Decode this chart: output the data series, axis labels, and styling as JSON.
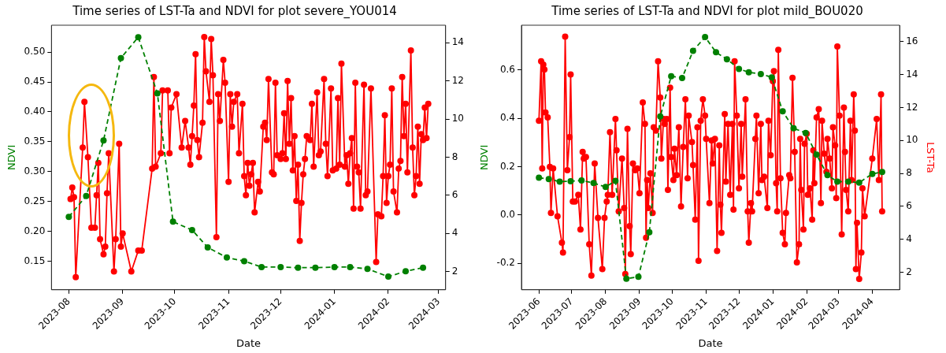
{
  "chart_data": [
    {
      "type": "line",
      "title": "Time series of LST-Ta and NDVI for plot severe_YOU014",
      "xlabel": "Date",
      "ylabel": "NDVI",
      "xlim": [
        "2023-07-22",
        "2024-03-05"
      ],
      "xticks": [
        "2023-08",
        "2023-09",
        "2023-10",
        "2023-11",
        "2023-12",
        "2024-01",
        "2024-02",
        "2024-03"
      ],
      "ylim": [
        0.102,
        0.545
      ],
      "yticks": [
        {
          "value": 0.15,
          "label": "0.15"
        },
        {
          "value": 0.2,
          "label": "0.20"
        },
        {
          "value": 0.25,
          "label": "0.25"
        },
        {
          "value": 0.3,
          "label": "0.30"
        },
        {
          "value": 0.35,
          "label": "0.35"
        },
        {
          "value": 0.4,
          "label": "0.40"
        },
        {
          "value": 0.45,
          "label": "0.45"
        },
        {
          "value": 0.5,
          "label": "0.50"
        }
      ],
      "y2lim": [
        1.04,
        14.92
      ],
      "y2ticks": [
        2,
        4,
        6,
        8,
        10,
        12,
        14
      ],
      "grid": false,
      "series": [
        {
          "type": "line",
          "color": "#008000",
          "marker": "circle",
          "line_style": "dashed",
          "axis": "y",
          "x": [
            "2023-08-01",
            "2023-08-11",
            "2023-08-21",
            "2023-08-31",
            "2023-09-10",
            "2023-09-21",
            "2023-09-30",
            "2023-10-11",
            "2023-10-20",
            "2023-10-31",
            "2023-11-10",
            "2023-11-20",
            "2023-12-01",
            "2023-12-11",
            "2023-12-21",
            "2024-01-01",
            "2024-01-10",
            "2024-01-20",
            "2024-02-01",
            "2024-02-11",
            "2024-02-21"
          ],
          "values": [
            0.224,
            0.259,
            0.352,
            0.49,
            0.525,
            0.431,
            0.216,
            0.202,
            0.173,
            0.156,
            0.15,
            0.14,
            0.14,
            0.139,
            0.139,
            0.14,
            0.14,
            0.137,
            0.124,
            0.133,
            0.139
          ]
        },
        {
          "type": "line",
          "color": "#ff0000",
          "marker": "circle",
          "line_style": "solid",
          "axis": "y2",
          "x": [
            "2023-08-02",
            "2023-08-03",
            "2023-08-04",
            "2023-08-05",
            "2023-08-09",
            "2023-08-10",
            "2023-08-12",
            "2023-08-14",
            "2023-08-16",
            "2023-08-17",
            "2023-08-18",
            "2023-08-19",
            "2023-08-21",
            "2023-08-22",
            "2023-08-23",
            "2023-08-24",
            "2023-08-27",
            "2023-08-28",
            "2023-08-30",
            "2023-08-31",
            "2023-09-01",
            "2023-09-06",
            "2023-09-10",
            "2023-09-12",
            "2023-09-18",
            "2023-09-19",
            "2023-09-20",
            "2023-09-23",
            "2023-09-24",
            "2023-09-27",
            "2023-09-28",
            "2023-09-29",
            "2023-10-02",
            "2023-10-05",
            "2023-10-07",
            "2023-10-09",
            "2023-10-10",
            "2023-10-11",
            "2023-10-12",
            "2023-10-13",
            "2023-10-14",
            "2023-10-15",
            "2023-10-17",
            "2023-10-18",
            "2023-10-19",
            "2023-10-21",
            "2023-10-22",
            "2023-10-23",
            "2023-10-25",
            "2023-10-26",
            "2023-10-27",
            "2023-10-29",
            "2023-10-30",
            "2023-11-01",
            "2023-11-02",
            "2023-11-03",
            "2023-11-04",
            "2023-11-06",
            "2023-11-07",
            "2023-11-09",
            "2023-11-10",
            "2023-11-11",
            "2023-11-12",
            "2023-11-13",
            "2023-11-14",
            "2023-11-15",
            "2023-11-16",
            "2023-11-18",
            "2023-11-19",
            "2023-11-21",
            "2023-11-22",
            "2023-11-23",
            "2023-11-24",
            "2023-11-26",
            "2023-11-27",
            "2023-11-28",
            "2023-11-29",
            "2023-12-01",
            "2023-12-02",
            "2023-12-03",
            "2023-12-04",
            "2023-12-05",
            "2023-12-06",
            "2023-12-07",
            "2023-12-08",
            "2023-12-09",
            "2023-12-10",
            "2023-12-11",
            "2023-12-12",
            "2023-12-13",
            "2023-12-14",
            "2023-12-15",
            "2023-12-16",
            "2023-12-18",
            "2023-12-19",
            "2023-12-20",
            "2023-12-22",
            "2023-12-23",
            "2023-12-24",
            "2023-12-26",
            "2023-12-27",
            "2023-12-28",
            "2023-12-30",
            "2023-12-31",
            "2024-01-02",
            "2024-01-03",
            "2024-01-04",
            "2024-01-05",
            "2024-01-07",
            "2024-01-08",
            "2024-01-09",
            "2024-01-10",
            "2024-01-11",
            "2024-01-12",
            "2024-01-13",
            "2024-01-14",
            "2024-01-15",
            "2024-01-16",
            "2024-01-18",
            "2024-01-19",
            "2024-01-20",
            "2024-01-22",
            "2024-01-25",
            "2024-01-26",
            "2024-01-28",
            "2024-01-29",
            "2024-01-30",
            "2024-01-31",
            "2024-02-01",
            "2024-02-02",
            "2024-02-03",
            "2024-02-04",
            "2024-02-06",
            "2024-02-07",
            "2024-02-08",
            "2024-02-09",
            "2024-02-10",
            "2024-02-11",
            "2024-02-12",
            "2024-02-14",
            "2024-02-15",
            "2024-02-16",
            "2024-02-17",
            "2024-02-18",
            "2024-02-19",
            "2024-02-20",
            "2024-02-21",
            "2024-02-22",
            "2024-02-23",
            "2024-02-24"
          ],
          "values": [
            5.8,
            6.4,
            5.9,
            1.7,
            8.5,
            10.9,
            8.0,
            4.3,
            4.3,
            6.0,
            7.7,
            3.7,
            2.9,
            3.3,
            6.1,
            8.2,
            2.0,
            3.7,
            8.7,
            3.3,
            4.0,
            2.0,
            3.1,
            3.1,
            7.4,
            12.2,
            7.5,
            8.2,
            11.5,
            11.5,
            8.2,
            10.6,
            11.3,
            8.5,
            9.9,
            8.5,
            7.6,
            9.1,
            10.7,
            13.4,
            8.9,
            8.0,
            9.8,
            14.3,
            12.5,
            10.9,
            14.2,
            12.3,
            3.8,
            11.3,
            9.9,
            13.1,
            11.9,
            6.7,
            11.3,
            9.6,
            10.9,
            11.3,
            8.2,
            10.8,
            7.0,
            6.0,
            7.7,
            6.5,
            7.1,
            7.7,
            5.1,
            6.7,
            6.2,
            9.6,
            9.8,
            8.9,
            12.1,
            7.2,
            7.1,
            11.9,
            8.1,
            7.9,
            8.2,
            10.3,
            7.9,
            12.0,
            8.7,
            11.1,
            7.3,
            9.1,
            5.7,
            7.6,
            3.6,
            5.6,
            7.1,
            7.9,
            9.1,
            8.9,
            10.8,
            7.5,
            11.4,
            8.1,
            8.3,
            12.1,
            8.7,
            7.0,
            11.6,
            7.3,
            7.4,
            11.1,
            7.6,
            12.9,
            7.5,
            8.1,
            6.6,
            8.2,
            9.0,
            5.3,
            11.9,
            7.5,
            7.2,
            5.3,
            11.8,
            6.0,
            6.2,
            11.6,
            2.5,
            5.0,
            4.9,
            7.0,
            10.2,
            5.6,
            7.0,
            7.6,
            11.6,
            6.2,
            5.1,
            7.4,
            7.8,
            12.2,
            9.1,
            10.8,
            7.2,
            13.6,
            8.5,
            6.0,
            7.0,
            9.6,
            6.6,
            9.2,
            8.9,
            10.6,
            9.0,
            10.8
          ]
        }
      ]
    },
    {
      "type": "line",
      "title": "Time series of LST-Ta and NDVI for plot mild_BOU020",
      "xlabel": "Date",
      "ylabel": "NDVI",
      "y2label": "LST-Ta",
      "xlim": [
        "2023-05-16",
        "2024-04-26"
      ],
      "xticks": [
        "2023-06",
        "2023-07",
        "2023-08",
        "2023-09",
        "2023-10",
        "2023-11",
        "2023-12",
        "2024-01",
        "2024-02",
        "2024-03",
        "2024-04"
      ],
      "ylim": [
        -0.31,
        0.786
      ],
      "yticks": [
        -0.2,
        {
          "value": 0,
          "label": "0.0"
        },
        0.2,
        0.4,
        0.6
      ],
      "y2lim": [
        0.94,
        16.99
      ],
      "y2ticks": [
        2,
        4,
        6,
        8,
        10,
        12,
        14,
        16
      ],
      "grid": false,
      "series": [
        {
          "type": "line",
          "color": "#008000",
          "marker": "circle",
          "line_style": "dashed",
          "axis": "y",
          "x": [
            "2023-06-01",
            "2023-06-10",
            "2023-06-20",
            "2023-06-30",
            "2023-07-10",
            "2023-07-21",
            "2023-08-01",
            "2023-08-10",
            "2023-08-20",
            "2023-08-31",
            "2023-09-10",
            "2023-09-20",
            "2023-09-30",
            "2023-10-10",
            "2023-10-20",
            "2023-10-31",
            "2023-11-10",
            "2023-11-20",
            "2023-12-01",
            "2023-12-10",
            "2023-12-21",
            "2023-12-31",
            "2024-01-10",
            "2024-01-20",
            "2024-01-31",
            "2024-02-10",
            "2024-02-20",
            "2024-02-29",
            "2024-03-10",
            "2024-03-20",
            "2024-04-01",
            "2024-04-10"
          ],
          "values": [
            0.154,
            0.149,
            0.138,
            0.14,
            0.143,
            0.132,
            0.116,
            0.141,
            -0.264,
            -0.256,
            -0.072,
            0.408,
            0.575,
            0.567,
            0.68,
            0.737,
            0.674,
            0.645,
            0.605,
            0.591,
            0.584,
            0.57,
            0.429,
            0.359,
            0.34,
            0.25,
            0.165,
            0.138,
            0.138,
            0.134,
            0.17,
            0.178
          ]
        },
        {
          "type": "line",
          "color": "#ff0000",
          "marker": "circle",
          "line_style": "solid",
          "axis": "y2",
          "x": [
            "2023-06-01",
            "2023-06-03",
            "2023-06-04",
            "2023-06-05",
            "2023-06-06",
            "2023-06-07",
            "2023-06-09",
            "2023-06-11",
            "2023-06-12",
            "2023-06-14",
            "2023-06-18",
            "2023-06-22",
            "2023-06-23",
            "2023-06-25",
            "2023-06-27",
            "2023-06-29",
            "2023-06-30",
            "2023-07-02",
            "2023-07-04",
            "2023-07-07",
            "2023-07-09",
            "2023-07-11",
            "2023-07-12",
            "2023-07-14",
            "2023-07-17",
            "2023-07-19",
            "2023-07-22",
            "2023-07-25",
            "2023-07-29",
            "2023-07-31",
            "2023-08-02",
            "2023-08-03",
            "2023-08-05",
            "2023-08-07",
            "2023-08-10",
            "2023-08-11",
            "2023-08-13",
            "2023-08-16",
            "2023-08-18",
            "2023-08-19",
            "2023-08-21",
            "2023-08-23",
            "2023-08-24",
            "2023-08-26",
            "2023-08-28",
            "2023-08-30",
            "2023-09-01",
            "2023-09-04",
            "2023-09-06",
            "2023-09-07",
            "2023-09-08",
            "2023-09-09",
            "2023-09-11",
            "2023-09-13",
            "2023-09-14",
            "2023-09-16",
            "2023-09-18",
            "2023-09-20",
            "2023-09-21",
            "2023-09-23",
            "2023-09-24",
            "2023-09-26",
            "2023-09-27",
            "2023-09-29",
            "2023-09-30",
            "2023-10-02",
            "2023-10-03",
            "2023-10-05",
            "2023-10-07",
            "2023-10-09",
            "2023-10-11",
            "2023-10-13",
            "2023-10-15",
            "2023-10-16",
            "2023-10-19",
            "2023-10-20",
            "2023-10-22",
            "2023-10-24",
            "2023-10-25",
            "2023-10-27",
            "2023-10-29",
            "2023-10-31",
            "2023-11-01",
            "2023-11-04",
            "2023-11-06",
            "2023-11-07",
            "2023-11-09",
            "2023-11-11",
            "2023-11-13",
            "2023-11-14",
            "2023-11-15",
            "2023-11-18",
            "2023-11-19",
            "2023-11-21",
            "2023-11-23",
            "2023-11-25",
            "2023-11-26",
            "2023-11-27",
            "2023-11-29",
            "2023-12-01",
            "2023-12-03",
            "2023-12-04",
            "2023-12-07",
            "2023-12-09",
            "2023-12-10",
            "2023-12-12",
            "2023-12-13",
            "2023-12-16",
            "2023-12-17",
            "2023-12-19",
            "2023-12-21",
            "2023-12-22",
            "2023-12-24",
            "2023-12-27",
            "2023-12-28",
            "2023-12-30",
            "2024-01-01",
            "2024-01-02",
            "2024-01-04",
            "2024-01-05",
            "2024-01-06",
            "2024-01-08",
            "2024-01-10",
            "2024-01-12",
            "2024-01-13",
            "2024-01-16",
            "2024-01-17",
            "2024-01-19",
            "2024-01-21",
            "2024-01-23",
            "2024-01-25",
            "2024-01-26",
            "2024-01-27",
            "2024-01-29",
            "2024-01-30",
            "2024-02-01",
            "2024-02-02",
            "2024-02-04",
            "2024-02-06",
            "2024-02-07",
            "2024-02-08",
            "2024-02-10",
            "2024-02-12",
            "2024-02-14",
            "2024-02-15",
            "2024-02-17",
            "2024-02-19",
            "2024-02-20",
            "2024-02-22",
            "2024-02-24",
            "2024-02-25",
            "2024-02-27",
            "2024-02-28",
            "2024-02-29",
            "2024-03-02",
            "2024-03-04",
            "2024-03-06",
            "2024-03-07",
            "2024-03-08",
            "2024-03-10",
            "2024-03-12",
            "2024-03-13",
            "2024-03-15",
            "2024-03-16",
            "2024-03-17",
            "2024-03-18",
            "2024-03-20",
            "2024-03-22",
            "2024-03-23",
            "2024-03-25",
            "2024-04-01",
            "2024-04-05",
            "2024-04-07",
            "2024-04-09",
            "2024-04-10"
          ],
          "values": [
            11.2,
            14.8,
            8.3,
            14.6,
            14.3,
            11.7,
            11.4,
            8.4,
            5.6,
            8.3,
            5.4,
            3.8,
            3.2,
            16.3,
            8.2,
            10.2,
            14.0,
            6.3,
            6.3,
            6.7,
            4.6,
            9.3,
            8.9,
            9.0,
            3.7,
            1.8,
            8.6,
            5.3,
            2.2,
            5.3,
            6.3,
            6.7,
            10.5,
            6.7,
            11.3,
            9.4,
            5.7,
            8.9,
            5.9,
            1.9,
            10.7,
            4.8,
            3.1,
            8.6,
            8.2,
            8.3,
            6.8,
            12.3,
            11.0,
            4.1,
            7.6,
            5.9,
            8.0,
            5.6,
            10.8,
            10.6,
            14.8,
            12.6,
            8.9,
            11.3,
            11.0,
            11.3,
            7.0,
            13.2,
            9.0,
            7.6,
            9.5,
            7.9,
            10.8,
            6.0,
            9.6,
            12.5,
            7.7,
            11.5,
            9.9,
            8.5,
            5.2,
            10.8,
            2.7,
            11.2,
            12.5,
            11.5,
            10.1,
            6.2,
            10.0,
            8.6,
            10.1,
            3.3,
            9.7,
            6.1,
            4.4,
            11.6,
            7.5,
            11.0,
            6.7,
            11.0,
            5.8,
            14.8,
            11.5,
            7.1,
            11.0,
            7.8,
            12.5,
            5.7,
            3.8,
            6.2,
            5.7,
            10.1,
            11.5,
            6.8,
            11.0,
            7.6,
            7.8,
            5.9,
            11.2,
            9.1,
            13.6,
            14.2,
            7.4,
            5.7,
            15.5,
            7.7,
            4.4,
            3.7,
            5.6,
            7.9,
            7.7,
            13.8,
            9.3,
            2.6,
            3.7,
            10.1,
            7.0,
            4.6,
            9.8,
            10.4,
            6.7,
            7.1,
            5.2,
            9.4,
            7.4,
            11.4,
            11.9,
            6.2,
            11.2,
            9.2,
            8.1,
            10.1,
            8.9,
            7.1,
            10.8,
            9.7,
            6.5,
            15.7,
            11.5,
            4.3,
            12.0,
            9.3,
            7.0,
            5.7,
            11.2,
            7.6,
            12.8,
            10.6,
            2.2,
            5.0,
            1.6,
            3.2,
            7.1,
            5.4,
            8.9,
            11.3,
            7.6,
            12.8,
            5.7
          ]
        }
      ]
    }
  ]
}
